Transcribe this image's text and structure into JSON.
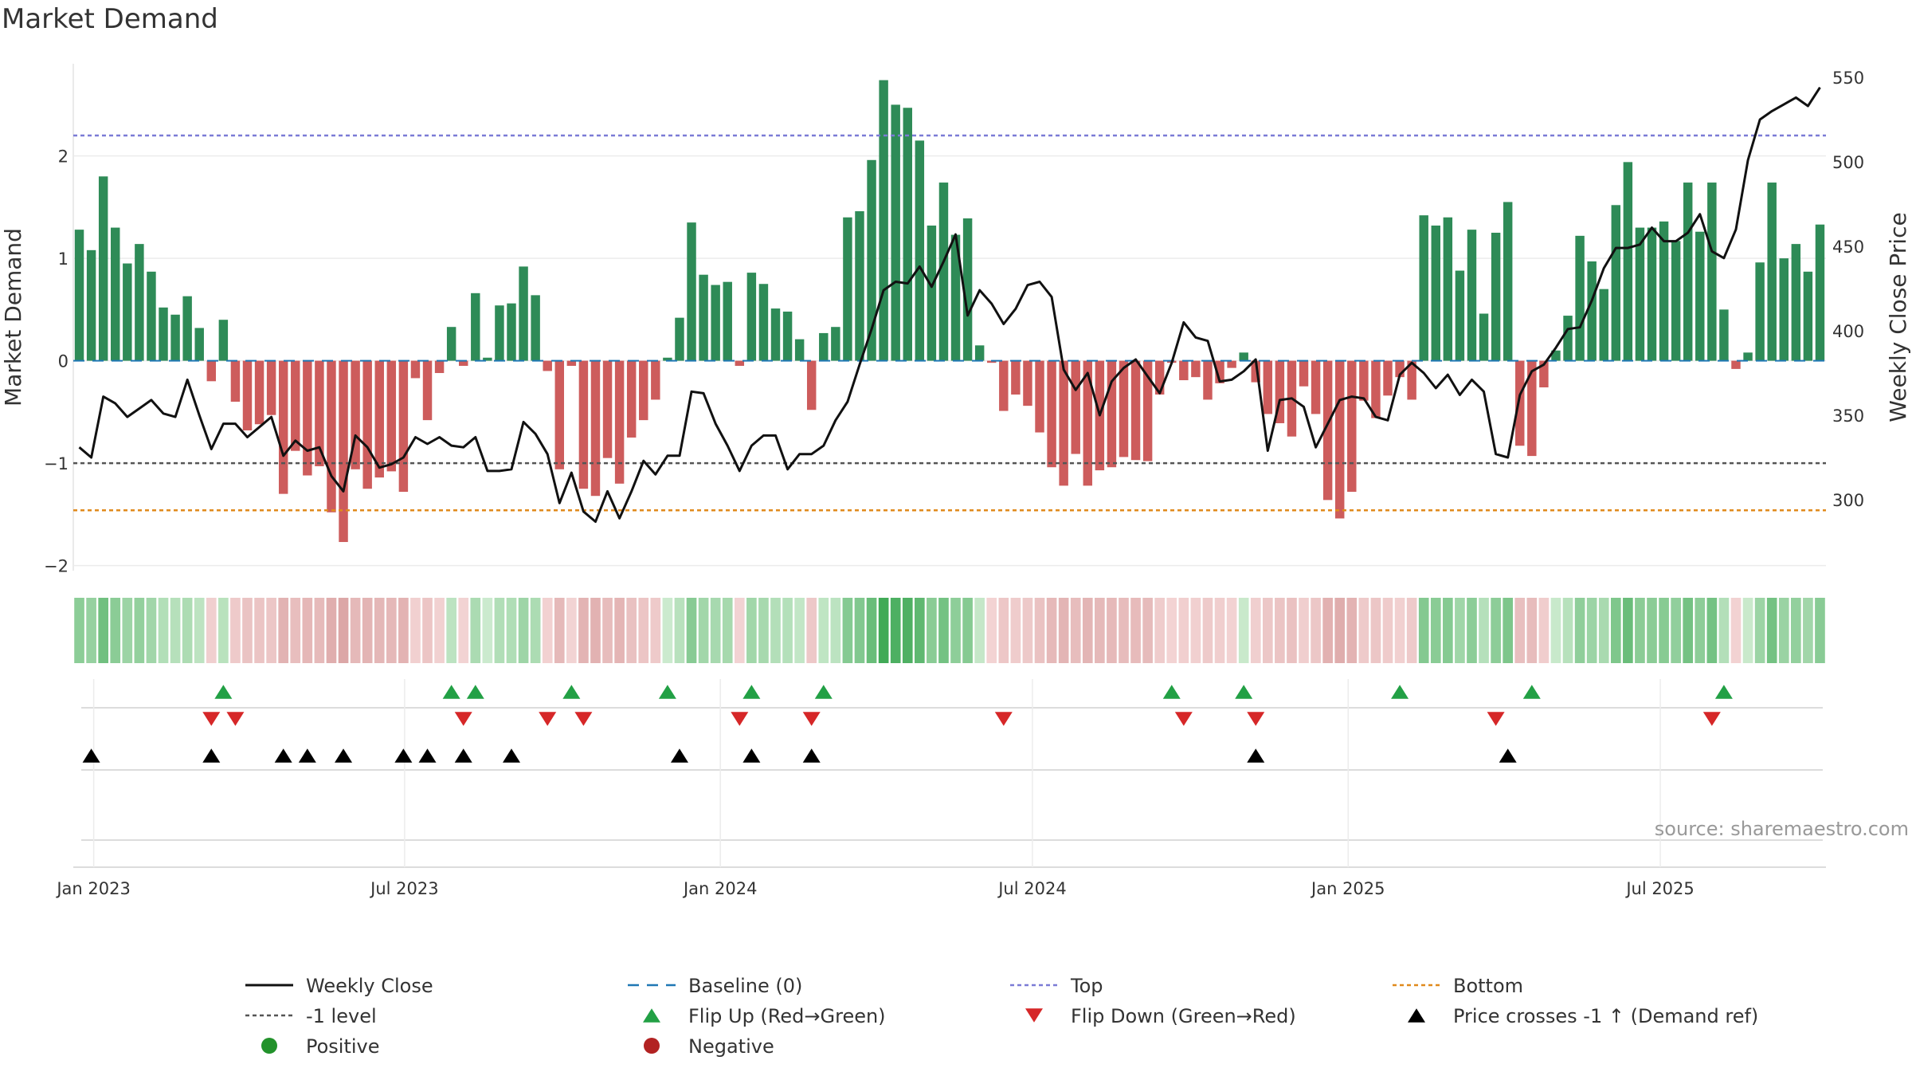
{
  "title": "Market Demand",
  "source": "source: sharemaestro.com",
  "chart_data": {
    "type": "bar",
    "title": "Market Demand",
    "ylabel": "Market Demand",
    "y2label": "Weekly Close Price",
    "ylim": [
      -2.05,
      2.9
    ],
    "y2lim": [
      258,
      558
    ],
    "yticks": [
      -2,
      -1,
      0,
      1,
      2
    ],
    "y2ticks": [
      300,
      350,
      400,
      450,
      500,
      550
    ],
    "xticks": [
      "Jan 2023",
      "Jul 2023",
      "Jan 2024",
      "Jul 2024",
      "Jan 2025",
      "Jul 2025"
    ],
    "xtick_weeks": [
      1.7,
      27.6,
      53.9,
      79.9,
      106.2,
      132.2
    ],
    "levels": {
      "top": 2.2,
      "minus_one": -1.0,
      "bottom": -1.46
    },
    "colors": {
      "positive": "#2e8b57",
      "negative": "#cd5c5c",
      "close": "#111111",
      "top": "#7b7bd6",
      "bottom": "#e08a1c",
      "level": "#555555",
      "baseline": "#1f77b4",
      "flip_up": "#22a045",
      "flip_down": "#d62728"
    },
    "demand": [
      1.28,
      1.08,
      1.8,
      1.3,
      0.95,
      1.14,
      0.87,
      0.52,
      0.45,
      0.63,
      0.32,
      -0.2,
      0.4,
      -0.4,
      -0.68,
      -0.62,
      -0.53,
      -1.3,
      -0.88,
      -1.12,
      -1.03,
      -1.48,
      -1.77,
      -1.06,
      -1.25,
      -1.14,
      -1.08,
      -1.28,
      -0.17,
      -0.58,
      -0.12,
      0.33,
      -0.05,
      0.66,
      0.03,
      0.54,
      0.56,
      0.92,
      0.64,
      -0.1,
      -1.06,
      -0.05,
      -1.25,
      -1.32,
      -0.95,
      -1.2,
      -0.75,
      -0.58,
      -0.38,
      0.03,
      0.42,
      1.35,
      0.84,
      0.74,
      0.77,
      -0.05,
      0.86,
      0.75,
      0.51,
      0.48,
      0.21,
      -0.48,
      0.27,
      0.33,
      1.4,
      1.46,
      1.96,
      2.74,
      2.5,
      2.47,
      2.15,
      1.32,
      1.74,
      1.23,
      1.39,
      0.15,
      -0.02,
      -0.49,
      -0.33,
      -0.44,
      -0.7,
      -1.04,
      -1.22,
      -0.91,
      -1.22,
      -1.07,
      -1.04,
      -0.94,
      -0.97,
      -0.98,
      -0.33,
      -0.02,
      -0.19,
      -0.16,
      -0.38,
      -0.22,
      -0.07,
      0.08,
      -0.21,
      -0.52,
      -0.61,
      -0.74,
      -0.25,
      -0.52,
      -1.36,
      -1.54,
      -1.28,
      -0.39,
      -0.56,
      -0.34,
      -0.16,
      -0.38,
      1.42,
      1.32,
      1.4,
      0.88,
      1.28,
      0.46,
      1.25,
      1.55,
      -0.83,
      -0.93,
      -0.26,
      0.1,
      0.44,
      1.22,
      0.97,
      0.7,
      1.52,
      1.94,
      1.3,
      1.3,
      1.36,
      1.17,
      1.74,
      1.26,
      1.74,
      0.5,
      -0.08,
      0.08,
      0.96,
      1.74,
      1.0,
      1.14,
      0.87,
      1.33
    ],
    "close": [
      331,
      325,
      361,
      357,
      349,
      354,
      359,
      351,
      349,
      371,
      350,
      330,
      345,
      345,
      337,
      343,
      349,
      326,
      335,
      329,
      331,
      314,
      305,
      338,
      331,
      319,
      321,
      325,
      337,
      333,
      337,
      332,
      331,
      337,
      317,
      317,
      318,
      346,
      339,
      327,
      298,
      316,
      293,
      287,
      305,
      289,
      305,
      323,
      315,
      326,
      326,
      364,
      363,
      345,
      332,
      317,
      332,
      338,
      338,
      318,
      327,
      327,
      332,
      347,
      358,
      380,
      401,
      424,
      429,
      428,
      438,
      426,
      441,
      457,
      409,
      424,
      416,
      404,
      413,
      427,
      429,
      420,
      377,
      365,
      375,
      350,
      370,
      378,
      383,
      373,
      363,
      381,
      405,
      396,
      394,
      370,
      371,
      376,
      383,
      329,
      359,
      360,
      355,
      331,
      345,
      359,
      361,
      360,
      349,
      347,
      374,
      381,
      375,
      366,
      374,
      362,
      371,
      364,
      327,
      325,
      362,
      376,
      380,
      390,
      401,
      402,
      418,
      437,
      449,
      449,
      451,
      461,
      453,
      453,
      458,
      469,
      447,
      443,
      460,
      501,
      525,
      530,
      534,
      538,
      533,
      544
    ],
    "flip_up": [
      12.5,
      31.5,
      33.5,
      41.5,
      49.5,
      56.5,
      62.5,
      91.5,
      97.5,
      110.5,
      121.5,
      137.5
    ],
    "flip_down": [
      11.5,
      13.5,
      32.5,
      39.5,
      42.5,
      55.5,
      61.5,
      77.5,
      92.5,
      98.5,
      118.5,
      136.5
    ],
    "price_cross_up": [
      1.5,
      11.5,
      17.5,
      19.5,
      22.5,
      27.5,
      29.5,
      32.5,
      36.5,
      50.5,
      56.5,
      61.5,
      98.5,
      119.5
    ],
    "legend": [
      {
        "label": "Weekly Close",
        "kind": "line-solid",
        "color": "#111111"
      },
      {
        "label": "Baseline (0)",
        "kind": "line-dash",
        "color": "#1f77b4"
      },
      {
        "label": "Top",
        "kind": "line-dot",
        "color": "#7b7bd6"
      },
      {
        "label": "Bottom",
        "kind": "line-dot",
        "color": "#e08a1c"
      },
      {
        "label": "-1 level",
        "kind": "line-dot",
        "color": "#555555"
      },
      {
        "label": "Flip Up (Red→Green)",
        "kind": "tri-up",
        "color": "#22a045"
      },
      {
        "label": "Flip Down (Green→Red)",
        "kind": "tri-down",
        "color": "#d62728"
      },
      {
        "label": "Price crosses -1 ↑ (Demand ref)",
        "kind": "tri-up",
        "color": "#000000"
      },
      {
        "label": "Positive",
        "kind": "dot",
        "color": "#22922b"
      },
      {
        "label": "Negative",
        "kind": "dot",
        "color": "#b22222"
      }
    ]
  }
}
